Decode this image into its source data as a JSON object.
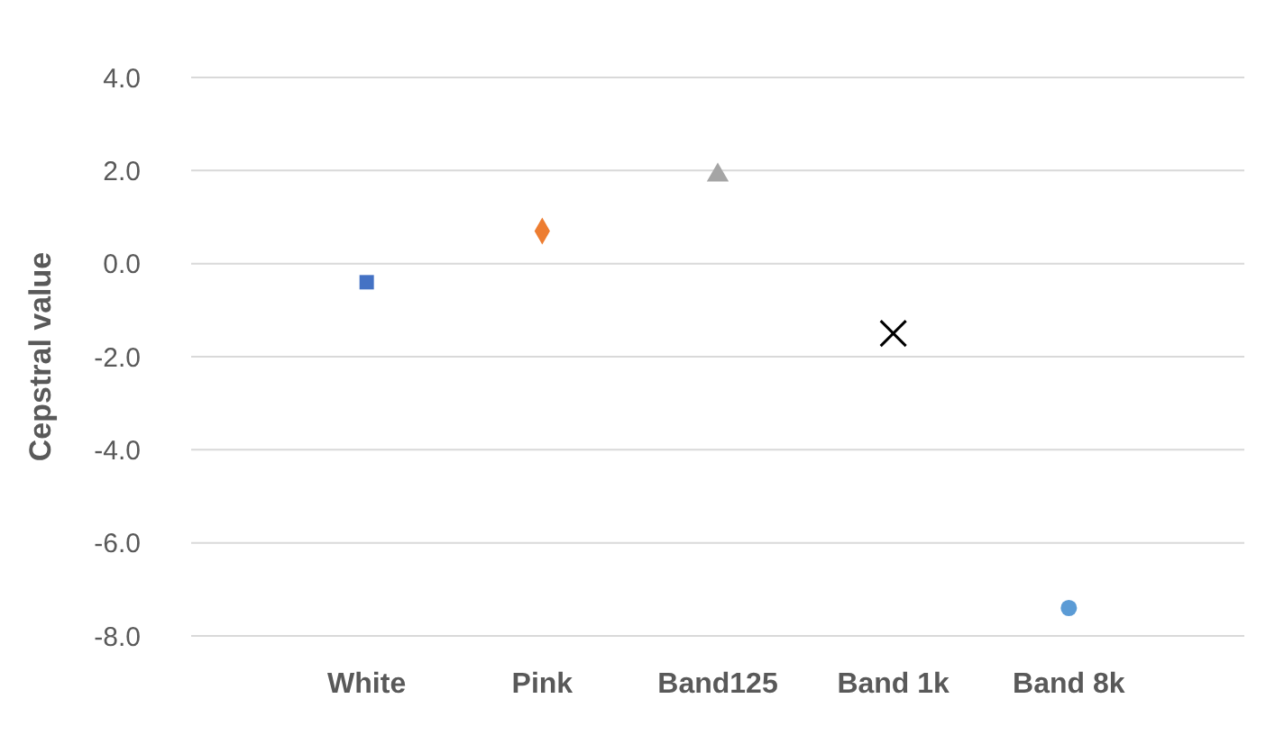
{
  "chart_data": {
    "type": "scatter",
    "ylabel": "Cepstral value",
    "categories": [
      "White",
      "Pink",
      "Band125",
      "Band 1k",
      "Band 8k"
    ],
    "series": [
      {
        "color": "#4472c4",
        "marker": "square",
        "values": [
          -0.4,
          null,
          null,
          null,
          null
        ]
      },
      {
        "color": "#ed7d31",
        "marker": "diamond",
        "values": [
          null,
          0.7,
          null,
          null,
          null
        ]
      },
      {
        "color": "#a5a5a5",
        "marker": "triangle",
        "values": [
          null,
          null,
          1.9,
          null,
          null
        ]
      },
      {
        "color": "#000000",
        "marker": "cross",
        "values": [
          null,
          null,
          null,
          -1.5,
          null
        ]
      },
      {
        "color": "#5b9bd5",
        "marker": "circle",
        "values": [
          null,
          null,
          null,
          null,
          -7.4
        ]
      }
    ],
    "ylim": [
      -8,
      4
    ],
    "yticks": [
      {
        "value": -8,
        "label": "-8.0"
      },
      {
        "value": -6,
        "label": "-6.0"
      },
      {
        "value": -4,
        "label": "-4.0"
      },
      {
        "value": -2,
        "label": "-2.0"
      },
      {
        "value": 0,
        "label": "0.0"
      },
      {
        "value": 2,
        "label": "2.0"
      },
      {
        "value": 4,
        "label": "4.0"
      }
    ],
    "grid": "y"
  }
}
